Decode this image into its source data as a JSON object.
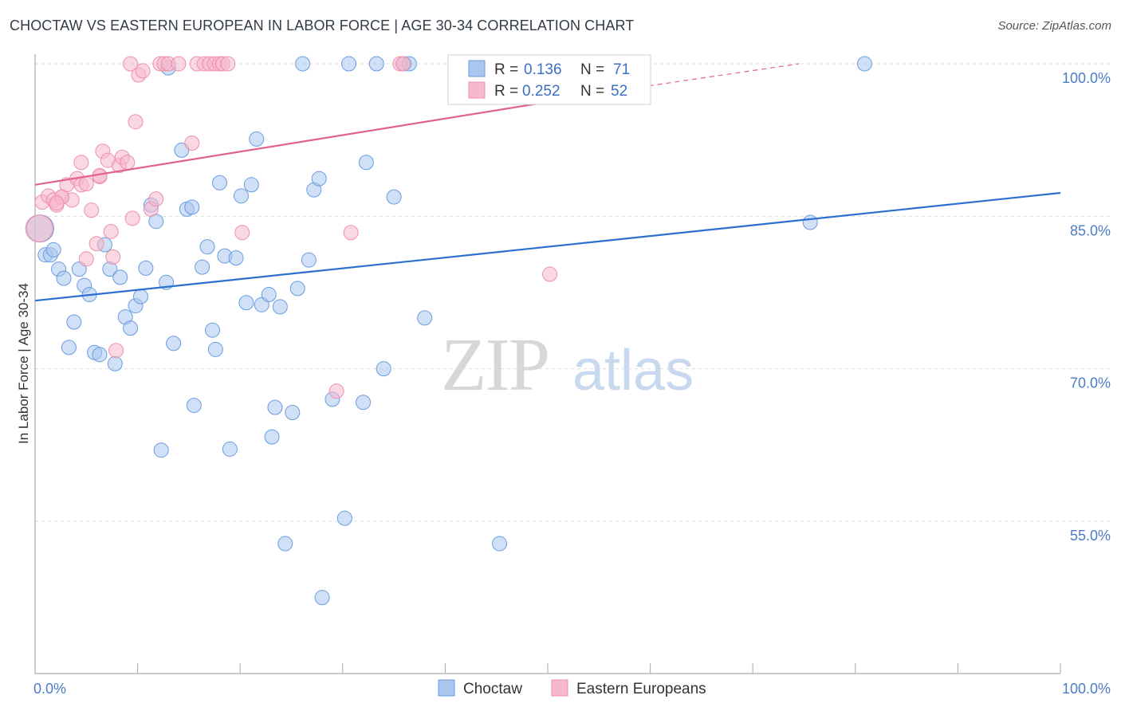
{
  "title": "CHOCTAW VS EASTERN EUROPEAN IN LABOR FORCE | AGE 30-34 CORRELATION CHART",
  "source": "Source: ZipAtlas.com",
  "watermark": {
    "zip": "ZIP",
    "atlas": "atlas"
  },
  "colors": {
    "blue_fill": "#a9c6ef",
    "blue_stroke": "#6b9be0",
    "blue_line": "#2c6fd1",
    "pink_fill": "#f6b8cb",
    "pink_stroke": "#ee8fad",
    "pink_line": "#e2628f",
    "grid": "#dddddd",
    "tick_text": "#4a7cc8"
  },
  "legend": {
    "r_label": "R =",
    "n_label": "N =",
    "series": [
      {
        "r": "0.136",
        "n": "71"
      },
      {
        "r": "0.252",
        "n": "52"
      }
    ]
  },
  "chart_data": {
    "type": "scatter",
    "xlabel": "",
    "ylabel": "In Labor Force | Age 30-34",
    "xlim": [
      0,
      100
    ],
    "ylim": [
      40,
      101.5
    ],
    "x_tick_labels": [
      "0.0%",
      "100.0%"
    ],
    "y_ticks": [
      55,
      70,
      85,
      100
    ],
    "y_tick_labels": [
      "55.0%",
      "70.0%",
      "85.0%",
      "100.0%"
    ],
    "legend_position": "top-center",
    "series": [
      {
        "name": "Choctaw",
        "trend": {
          "x0": 0,
          "y0": 76.7,
          "x1": 100,
          "y1": 87.3
        },
        "points": [
          [
            0.5,
            83.8
          ],
          [
            1.0,
            81.2
          ],
          [
            1.5,
            81.2
          ],
          [
            1.8,
            81.7
          ],
          [
            2.3,
            79.8
          ],
          [
            2.8,
            78.9
          ],
          [
            3.3,
            72.1
          ],
          [
            3.8,
            74.6
          ],
          [
            4.3,
            79.8
          ],
          [
            4.8,
            78.2
          ],
          [
            5.3,
            77.3
          ],
          [
            5.8,
            71.6
          ],
          [
            6.3,
            71.4
          ],
          [
            6.8,
            82.2
          ],
          [
            7.3,
            79.8
          ],
          [
            7.8,
            70.5
          ],
          [
            8.3,
            79.0
          ],
          [
            8.8,
            75.1
          ],
          [
            9.3,
            74.0
          ],
          [
            9.8,
            76.2
          ],
          [
            10.3,
            77.1
          ],
          [
            10.8,
            79.9
          ],
          [
            11.3,
            86.1
          ],
          [
            11.8,
            84.5
          ],
          [
            12.3,
            62.0
          ],
          [
            12.8,
            78.5
          ],
          [
            13.0,
            99.6
          ],
          [
            13.5,
            72.5
          ],
          [
            14.3,
            91.5
          ],
          [
            14.8,
            85.7
          ],
          [
            15.3,
            85.9
          ],
          [
            15.5,
            66.4
          ],
          [
            16.3,
            80.0
          ],
          [
            16.8,
            82.0
          ],
          [
            17.3,
            73.8
          ],
          [
            17.6,
            71.9
          ],
          [
            18.0,
            88.3
          ],
          [
            18.5,
            81.1
          ],
          [
            19.0,
            62.1
          ],
          [
            19.6,
            80.9
          ],
          [
            20.1,
            87.0
          ],
          [
            20.6,
            76.5
          ],
          [
            21.1,
            88.1
          ],
          [
            21.6,
            92.6
          ],
          [
            22.1,
            76.3
          ],
          [
            22.8,
            77.3
          ],
          [
            23.1,
            63.3
          ],
          [
            23.4,
            66.2
          ],
          [
            23.9,
            76.1
          ],
          [
            24.4,
            52.8
          ],
          [
            25.1,
            65.7
          ],
          [
            25.6,
            77.9
          ],
          [
            26.1,
            100.0
          ],
          [
            26.7,
            80.7
          ],
          [
            27.2,
            87.6
          ],
          [
            27.7,
            88.7
          ],
          [
            28.0,
            47.5
          ],
          [
            29.0,
            67.0
          ],
          [
            30.2,
            55.3
          ],
          [
            30.6,
            100.0
          ],
          [
            32.0,
            66.7
          ],
          [
            32.3,
            90.3
          ],
          [
            33.3,
            100.0
          ],
          [
            34.0,
            70.0
          ],
          [
            35.0,
            86.9
          ],
          [
            36.0,
            100.0
          ],
          [
            36.5,
            100.0
          ],
          [
            38.0,
            75.0
          ],
          [
            45.3,
            52.8
          ],
          [
            75.6,
            84.4
          ],
          [
            80.9,
            100.0
          ]
        ]
      },
      {
        "name": "Eastern Europeans",
        "trend": {
          "x0": 0,
          "y0": 88.1,
          "x1": 59,
          "y1": 97.7
        },
        "trend_dashed": {
          "x0": 59,
          "y0": 97.7,
          "x1": 74.5,
          "y1": 100.0
        },
        "points": [
          [
            0.4,
            83.8
          ],
          [
            0.7,
            86.4
          ],
          [
            1.3,
            87.0
          ],
          [
            1.8,
            86.6
          ],
          [
            2.1,
            86.1
          ],
          [
            2.6,
            86.9
          ],
          [
            3.1,
            88.1
          ],
          [
            3.6,
            86.6
          ],
          [
            4.1,
            88.7
          ],
          [
            4.5,
            90.3
          ],
          [
            5.0,
            80.8
          ],
          [
            5.5,
            85.6
          ],
          [
            6.0,
            82.3
          ],
          [
            6.3,
            88.9
          ],
          [
            6.6,
            91.4
          ],
          [
            7.1,
            90.5
          ],
          [
            7.4,
            83.5
          ],
          [
            7.6,
            81.0
          ],
          [
            7.9,
            71.8
          ],
          [
            8.2,
            90.0
          ],
          [
            8.5,
            90.8
          ],
          [
            9.0,
            90.3
          ],
          [
            9.3,
            100.0
          ],
          [
            9.5,
            84.8
          ],
          [
            9.8,
            94.3
          ],
          [
            10.1,
            98.9
          ],
          [
            10.5,
            99.3
          ],
          [
            11.3,
            85.7
          ],
          [
            11.8,
            86.7
          ],
          [
            12.2,
            100.0
          ],
          [
            12.6,
            100.0
          ],
          [
            13.0,
            100.0
          ],
          [
            14.0,
            100.0
          ],
          [
            15.3,
            92.2
          ],
          [
            15.8,
            100.0
          ],
          [
            16.5,
            100.0
          ],
          [
            17.0,
            100.0
          ],
          [
            17.5,
            100.0
          ],
          [
            18.0,
            100.0
          ],
          [
            18.3,
            100.0
          ],
          [
            18.8,
            100.0
          ],
          [
            20.2,
            83.4
          ],
          [
            29.4,
            67.8
          ],
          [
            30.8,
            83.4
          ],
          [
            35.6,
            100.0
          ],
          [
            35.9,
            100.0
          ],
          [
            50.2,
            79.3
          ],
          [
            2.6,
            86.9
          ],
          [
            2.1,
            86.3
          ],
          [
            4.5,
            88.1
          ],
          [
            5.0,
            88.2
          ],
          [
            6.3,
            89.0
          ]
        ]
      }
    ]
  },
  "bottom_legend": [
    "Choctaw",
    "Eastern Europeans"
  ]
}
